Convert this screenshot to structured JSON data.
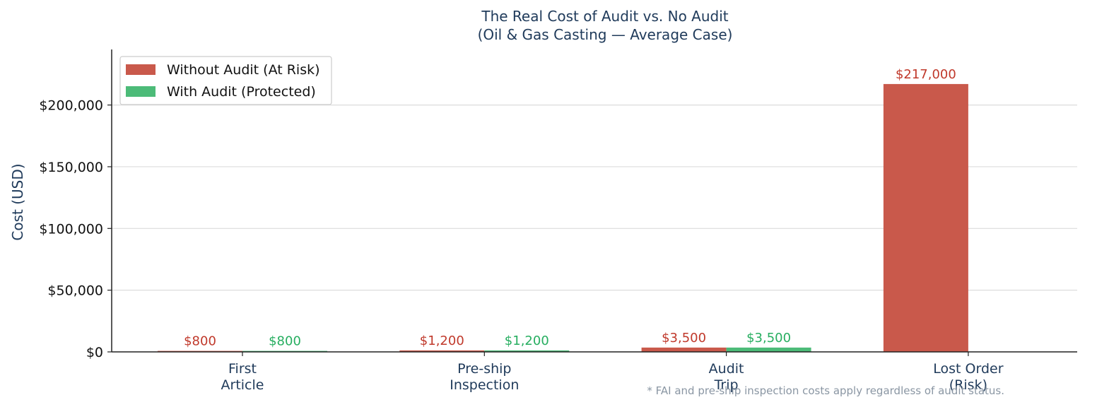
{
  "chart_data": {
    "type": "bar",
    "title": "The Real Cost of Audit vs. No Audit",
    "subtitle": "(Oil & Gas Casting — Average Case)",
    "xlabel": "",
    "ylabel": "Cost (USD)",
    "ylim": [
      0,
      245000
    ],
    "yticks": [
      0,
      50000,
      100000,
      150000,
      200000
    ],
    "ytick_labels": [
      "$0",
      "$50,000",
      "$100,000",
      "$150,000",
      "$200,000"
    ],
    "categories": [
      [
        "First",
        "Article"
      ],
      [
        "Pre-ship",
        "Inspection"
      ],
      [
        "Audit",
        "Trip"
      ],
      [
        "Lost Order",
        "(Risk)"
      ]
    ],
    "series": [
      {
        "name": "Without Audit (At Risk)",
        "color": "#c9594b",
        "label_color": "#c0392b",
        "values": [
          800,
          1200,
          3500,
          217000
        ],
        "labels": [
          "$800",
          "$1,200",
          "$3,500",
          "$217,000"
        ]
      },
      {
        "name": "With Audit (Protected)",
        "color": "#4cbb78",
        "label_color": "#27ae60",
        "values": [
          800,
          1200,
          3500,
          0
        ],
        "labels": [
          "$800",
          "$1,200",
          "$3,500",
          ""
        ]
      }
    ],
    "grid": "y",
    "legend": "top-left",
    "footnote": "* FAI and pre-ship inspection costs apply regardless of audit status."
  }
}
